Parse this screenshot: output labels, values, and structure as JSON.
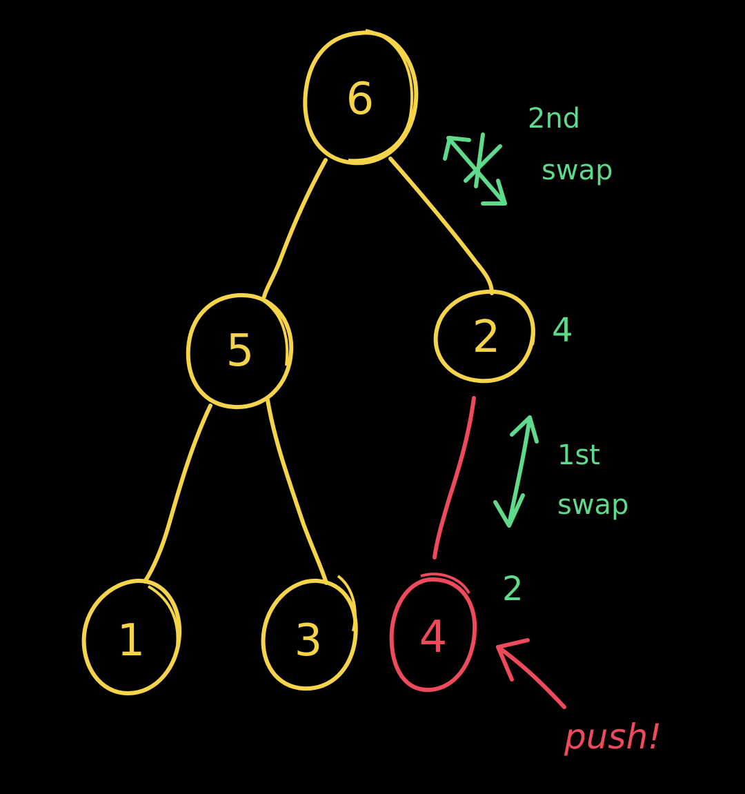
{
  "colors": {
    "background": "#000000",
    "tree": "#f5d44a",
    "pushed": "#ee4a5c",
    "annotation": "#5fd98a"
  },
  "nodes": [
    {
      "id": "n6",
      "label": "6"
    },
    {
      "id": "n5",
      "label": "5"
    },
    {
      "id": "n2",
      "label": "2"
    },
    {
      "id": "n1",
      "label": "1"
    },
    {
      "id": "n3",
      "label": "3"
    },
    {
      "id": "n4",
      "label": "4"
    }
  ],
  "annotations": {
    "second_swap_line1": "2nd",
    "second_swap_line2": "swap",
    "first_swap_line1": "1st",
    "first_swap_line2": "swap",
    "new_value_upper": "4",
    "new_value_lower": "2",
    "push_label": "push!"
  }
}
